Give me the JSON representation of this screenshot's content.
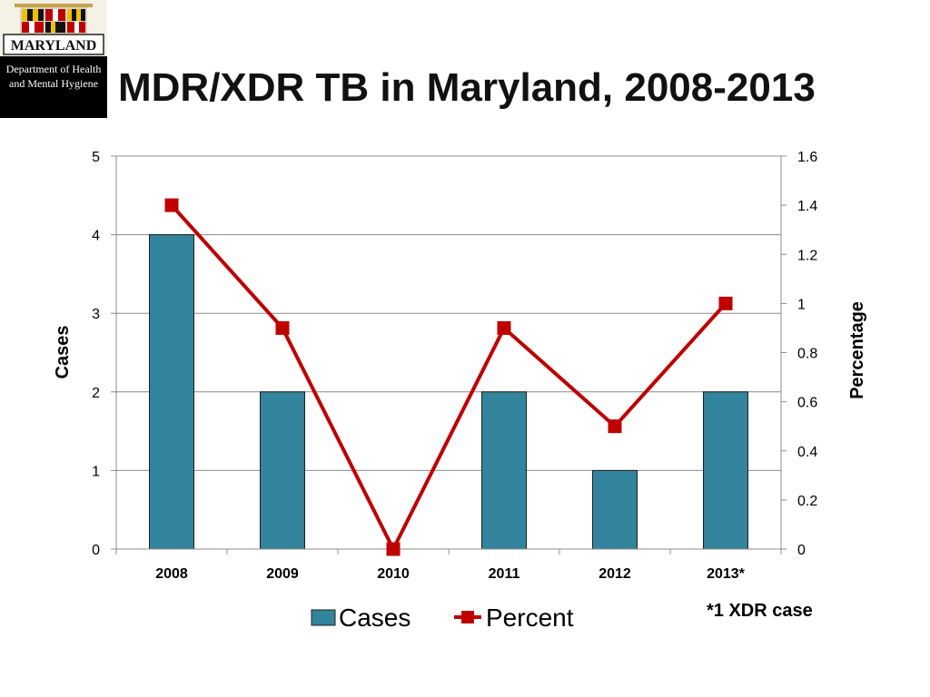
{
  "title": "MDR/XDR TB in Maryland, 2008-2013",
  "logo": {
    "line1": "MARYLAND",
    "line2": "Department of Health",
    "line3": "and Mental Hygiene"
  },
  "footnote": "*1 XDR case",
  "colors": {
    "bar_fill": "#31849b",
    "bar_stroke": "#1f1f1f",
    "line": "#c00000",
    "marker": "#c00000",
    "grid": "#8c8c8c"
  },
  "chart_data": {
    "type": "bar+line",
    "title": "MDR/XDR TB in Maryland, 2008-2013",
    "categories": [
      "2008",
      "2009",
      "2010",
      "2011",
      "2012",
      "2013*"
    ],
    "series": [
      {
        "name": "Cases",
        "type": "bar",
        "axis": "left",
        "values": [
          4,
          2,
          0,
          2,
          1,
          2
        ]
      },
      {
        "name": "Percent",
        "type": "line",
        "axis": "right",
        "values": [
          1.4,
          0.9,
          0.0,
          0.9,
          0.5,
          1.0
        ]
      }
    ],
    "ylabel": "Cases",
    "y2label": "Percentage",
    "ylim": [
      0,
      5
    ],
    "y2lim": [
      0,
      1.6
    ],
    "yticks": [
      "0",
      "1",
      "2",
      "3",
      "4",
      "5"
    ],
    "y2ticks": [
      "0",
      "0.2",
      "0.4",
      "0.6",
      "0.8",
      "1",
      "1.2",
      "1.4",
      "1.6"
    ],
    "grid": true,
    "legend_position": "bottom"
  }
}
